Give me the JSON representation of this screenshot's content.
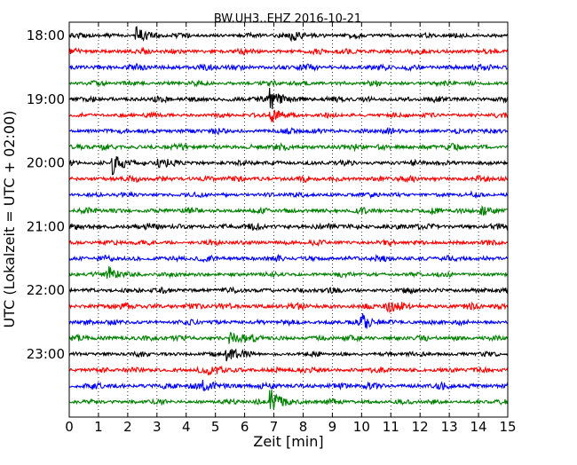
{
  "chart_data": {
    "type": "line",
    "title": "BW.UH3..EHZ 2016-10-21",
    "xlabel": "Zeit  [min]",
    "ylabel": "UTC (Lokalzeit = UTC + 02:00)",
    "xlim": [
      0,
      15
    ],
    "x_ticks": [
      "0",
      "1",
      "2",
      "3",
      "4",
      "5",
      "6",
      "7",
      "8",
      "9",
      "10",
      "11",
      "12",
      "13",
      "14",
      "15"
    ],
    "y_tick_labels": [
      "18:00",
      "19:00",
      "20:00",
      "21:00",
      "22:00",
      "23:00"
    ],
    "row_interval_minutes": 15,
    "row_count": 24,
    "row_start_times": [
      "18:00",
      "18:15",
      "18:30",
      "18:45",
      "19:00",
      "19:15",
      "19:30",
      "19:45",
      "20:00",
      "20:15",
      "20:30",
      "20:45",
      "21:00",
      "21:15",
      "21:30",
      "21:45",
      "22:00",
      "22:15",
      "22:30",
      "22:45",
      "23:00",
      "23:15",
      "23:30",
      "23:45"
    ],
    "row_colors": [
      "#000000",
      "#ff0000",
      "#0000ff",
      "#008000"
    ],
    "vertical_gridlines": "dotted at every minute",
    "series_note": "seismic velocity trace per 15-minute row"
  }
}
